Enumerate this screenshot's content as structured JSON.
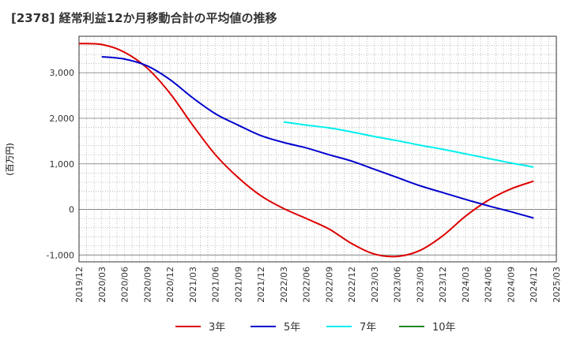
{
  "title": "[2378]  経常利益12か月移動合計の平均値の推移",
  "chart_data": {
    "type": "line",
    "title": "[2378]  経常利益12か月移動合計の平均値の推移",
    "ylabel": "(百万円)",
    "xlabel": "",
    "x_ticks": [
      "2019/12",
      "2020/03",
      "2020/06",
      "2020/09",
      "2020/12",
      "2021/03",
      "2021/06",
      "2021/09",
      "2021/12",
      "2022/03",
      "2022/06",
      "2022/09",
      "2022/12",
      "2023/03",
      "2023/06",
      "2023/09",
      "2023/12",
      "2024/03",
      "2024/06",
      "2024/09",
      "2024/12",
      "2025/03"
    ],
    "y_ticks": [
      -1000,
      0,
      1000,
      2000,
      3000
    ],
    "y_tick_labels": [
      "-1,000",
      "0",
      "1,000",
      "2,000",
      "3,000"
    ],
    "ylim": [
      -1150,
      3800
    ],
    "grid": true,
    "legend_position": "bottom",
    "series": [
      {
        "name": "3年",
        "color": "#dd0000",
        "points": [
          [
            "2019/12",
            3640
          ],
          [
            "2020/03",
            3620
          ],
          [
            "2020/06",
            3450
          ],
          [
            "2020/09",
            3100
          ],
          [
            "2020/12",
            2550
          ],
          [
            "2021/03",
            1850
          ],
          [
            "2021/06",
            1200
          ],
          [
            "2021/09",
            700
          ],
          [
            "2021/12",
            300
          ],
          [
            "2022/03",
            20
          ],
          [
            "2022/06",
            -200
          ],
          [
            "2022/09",
            -430
          ],
          [
            "2022/12",
            -750
          ],
          [
            "2023/03",
            -980
          ],
          [
            "2023/06",
            -1030
          ],
          [
            "2023/09",
            -900
          ],
          [
            "2023/12",
            -580
          ],
          [
            "2024/03",
            -150
          ],
          [
            "2024/06",
            200
          ],
          [
            "2024/09",
            450
          ],
          [
            "2024/12",
            620
          ]
        ]
      },
      {
        "name": "5年",
        "color": "#0000cc",
        "points": [
          [
            "2020/03",
            3350
          ],
          [
            "2020/06",
            3300
          ],
          [
            "2020/09",
            3150
          ],
          [
            "2020/12",
            2850
          ],
          [
            "2021/03",
            2450
          ],
          [
            "2021/06",
            2100
          ],
          [
            "2021/09",
            1850
          ],
          [
            "2021/12",
            1620
          ],
          [
            "2022/03",
            1470
          ],
          [
            "2022/06",
            1350
          ],
          [
            "2022/09",
            1200
          ],
          [
            "2022/12",
            1060
          ],
          [
            "2023/03",
            880
          ],
          [
            "2023/06",
            700
          ],
          [
            "2023/09",
            520
          ],
          [
            "2023/12",
            370
          ],
          [
            "2024/03",
            220
          ],
          [
            "2024/06",
            80
          ],
          [
            "2024/09",
            -50
          ],
          [
            "2024/12",
            -190
          ]
        ]
      },
      {
        "name": "7年",
        "color": "#00eeee",
        "points": [
          [
            "2022/03",
            1920
          ],
          [
            "2022/06",
            1850
          ],
          [
            "2022/09",
            1790
          ],
          [
            "2022/12",
            1700
          ],
          [
            "2023/03",
            1600
          ],
          [
            "2023/06",
            1510
          ],
          [
            "2023/09",
            1410
          ],
          [
            "2023/12",
            1320
          ],
          [
            "2024/03",
            1220
          ],
          [
            "2024/06",
            1120
          ],
          [
            "2024/09",
            1020
          ],
          [
            "2024/12",
            930
          ]
        ]
      },
      {
        "name": "10年",
        "color": "#228822",
        "points": []
      }
    ]
  }
}
